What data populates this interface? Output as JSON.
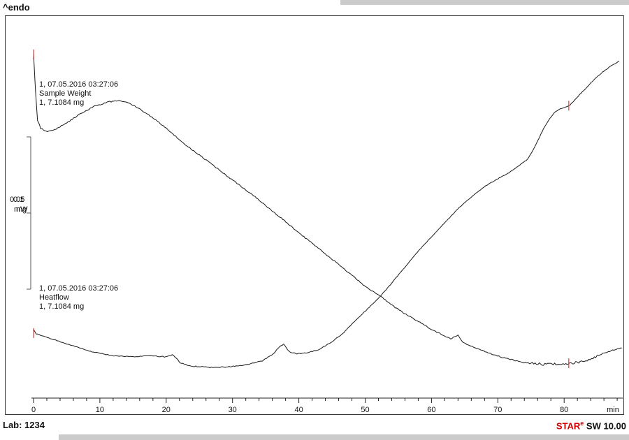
{
  "header": {
    "endo_label": "^endo"
  },
  "annotations": {
    "sample_weight": {
      "line1": "1, 07.05.2016 03:27:06",
      "line2": "Sample Weight",
      "line3": "1, 7.1084 mg"
    },
    "heatflow": {
      "line1": "1, 07.05.2016 03:27:06",
      "line2": "Heatflow",
      "line3": "1, 7.1084 mg"
    }
  },
  "scale_bar": {
    "heatflow": {
      "value": "0.05",
      "unit": "mW"
    },
    "weight": {
      "value": "0.1",
      "unit": "mg"
    }
  },
  "footer": {
    "lab": "Lab: 1234",
    "brand_star": "STAR",
    "brand_sup": "e",
    "brand_rest": " SW 10.00"
  },
  "colors": {
    "accent_red": "#d40000",
    "curve": "#1a1a1a",
    "marker_red": "#e03a3a",
    "frame": "#3c3c3c",
    "edge_gray": "#cbcbcb"
  },
  "chart_data": {
    "type": "line",
    "title": "",
    "xlabel": "min",
    "ylabel": "",
    "xlim": [
      0,
      89
    ],
    "ylim": [
      0,
      1
    ],
    "y_units": "normalized 0-1 of plot height (no numeric y axis; vertical scale bars shown instead)",
    "x_ticks": [
      0,
      10,
      20,
      30,
      40,
      50,
      60,
      70,
      80
    ],
    "x_minor_step": 2,
    "grid": false,
    "legend": "none",
    "y_scale_bars": [
      {
        "label": "0.05 mW",
        "series": "Heatflow"
      },
      {
        "label": "0.1 mg",
        "series": "Sample Weight"
      }
    ],
    "series": [
      {
        "name": "Sample Weight",
        "x": [
          0,
          0.3,
          0.6,
          1.1,
          2.1,
          3.4,
          5,
          7.1,
          9.2,
          11.3,
          12.9,
          14.4,
          16.5,
          18.7,
          20.8,
          22.9,
          25,
          27.1,
          29.2,
          31.3,
          33.4,
          35.5,
          37.6,
          39.7,
          41.8,
          43.9,
          46,
          48.2,
          50.3,
          52.4,
          54.5,
          56.6,
          58.7,
          60.8,
          62.9,
          64,
          64.7,
          66.6,
          68.7,
          70.8,
          72.9,
          75,
          77.1,
          79.2,
          81.3,
          83.5,
          85.6,
          87.1,
          88.7
        ],
        "y": [
          0.898,
          0.803,
          0.726,
          0.704,
          0.697,
          0.703,
          0.719,
          0.743,
          0.763,
          0.774,
          0.777,
          0.772,
          0.75,
          0.724,
          0.693,
          0.662,
          0.635,
          0.608,
          0.58,
          0.553,
          0.526,
          0.496,
          0.467,
          0.436,
          0.407,
          0.378,
          0.349,
          0.318,
          0.288,
          0.266,
          0.237,
          0.214,
          0.193,
          0.172,
          0.155,
          0.164,
          0.146,
          0.131,
          0.117,
          0.106,
          0.097,
          0.091,
          0.088,
          0.089,
          0.091,
          0.099,
          0.115,
          0.124,
          0.131
        ]
      },
      {
        "name": "Heatflow",
        "x": [
          0,
          0.4,
          2.3,
          5.5,
          8.6,
          11.8,
          15,
          17.6,
          19.7,
          21.1,
          22.1,
          23.6,
          26.6,
          29.7,
          32.4,
          34.5,
          36,
          37.1,
          37.7,
          38.5,
          39.7,
          41.3,
          42.9,
          44.2,
          45.3,
          46.6,
          47.8,
          49.2,
          50.6,
          51.9,
          53.4,
          55.5,
          57.6,
          59.7,
          61.9,
          64,
          66.1,
          68.2,
          70,
          71.7,
          73.1,
          74.5,
          75.3,
          76.1,
          76.9,
          77.8,
          78.5,
          79.2,
          80.1,
          80.9,
          81.9,
          83.2,
          84.5,
          85.8,
          87,
          88.3
        ],
        "y": [
          0.179,
          0.168,
          0.157,
          0.139,
          0.122,
          0.111,
          0.108,
          0.111,
          0.108,
          0.113,
          0.093,
          0.084,
          0.08,
          0.082,
          0.088,
          0.097,
          0.113,
          0.135,
          0.141,
          0.122,
          0.115,
          0.119,
          0.126,
          0.139,
          0.151,
          0.168,
          0.19,
          0.214,
          0.237,
          0.259,
          0.288,
          0.332,
          0.376,
          0.416,
          0.456,
          0.495,
          0.527,
          0.555,
          0.573,
          0.589,
          0.606,
          0.624,
          0.648,
          0.675,
          0.704,
          0.73,
          0.745,
          0.754,
          0.759,
          0.766,
          0.785,
          0.808,
          0.832,
          0.852,
          0.867,
          0.88
        ]
      }
    ],
    "markers": [
      {
        "series": "Sample Weight",
        "x": 0,
        "y": 0.898
      },
      {
        "series": "Sample Weight",
        "x": 80.7,
        "y": 0.091
      },
      {
        "series": "Heatflow",
        "x": 0,
        "y": 0.17
      },
      {
        "series": "Heatflow",
        "x": 80.7,
        "y": 0.764
      }
    ]
  }
}
